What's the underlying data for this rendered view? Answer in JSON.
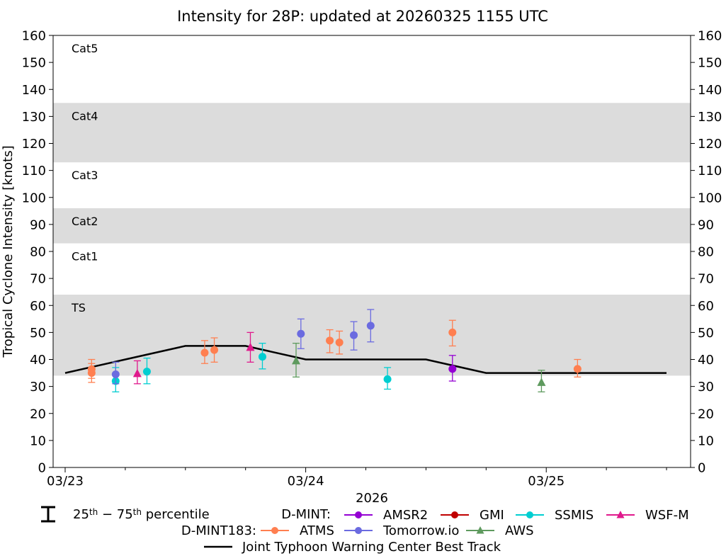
{
  "chart_data": {
    "type": "scatter",
    "title": "Intensity for 28P: updated at 20260325 1155 UTC",
    "xlabel": "2026",
    "ylabel": "Tropical Cyclone Intensity [knots]",
    "ylim": [
      0,
      160
    ],
    "xlim_days": [
      -0.05,
      2.6
    ],
    "yticks": [
      0,
      10,
      20,
      30,
      40,
      50,
      60,
      70,
      80,
      90,
      100,
      110,
      120,
      130,
      140,
      150,
      160
    ],
    "xticks": [
      {
        "day": 0,
        "label": "03/23"
      },
      {
        "day": 1,
        "label": "03/24"
      },
      {
        "day": 2,
        "label": "03/25"
      }
    ],
    "minor_xticks_days": [
      0.25,
      0.5,
      0.75,
      1.25,
      1.5,
      1.75,
      2.25,
      2.5
    ],
    "categories": [
      {
        "name": "TS",
        "min": 34,
        "max": 64,
        "shaded": true
      },
      {
        "name": "Cat1",
        "min": 64,
        "max": 83,
        "shaded": false
      },
      {
        "name": "Cat2",
        "min": 83,
        "max": 96,
        "shaded": true
      },
      {
        "name": "Cat3",
        "min": 96,
        "max": 113,
        "shaded": false
      },
      {
        "name": "Cat4",
        "min": 113,
        "max": 135,
        "shaded": true
      },
      {
        "name": "Cat5",
        "min": 135,
        "max": 160,
        "shaded": false
      }
    ],
    "best_track": {
      "name": "Joint Typhoon Warning Center Best Track",
      "color": "#000000",
      "points": [
        [
          0,
          35
        ],
        [
          0.25,
          40
        ],
        [
          0.5,
          45
        ],
        [
          0.75,
          45
        ],
        [
          1.0,
          40
        ],
        [
          1.25,
          40
        ],
        [
          1.5,
          40
        ],
        [
          1.75,
          35
        ],
        [
          2.0,
          35
        ],
        [
          2.25,
          35
        ],
        [
          2.5,
          35
        ]
      ]
    },
    "series": [
      {
        "name": "AMSR2",
        "group": "D-MINT",
        "color": "#9400D3",
        "marker": "circle",
        "points": [
          {
            "x": 1.61,
            "y": 36.5,
            "lo": 32,
            "hi": 41.5
          }
        ]
      },
      {
        "name": "GMI",
        "group": "D-MINT",
        "color": "#C00000",
        "marker": "circle",
        "points": []
      },
      {
        "name": "SSMIS",
        "group": "D-MINT",
        "color": "#00CED1",
        "marker": "circle",
        "points": [
          {
            "x": 0.21,
            "y": 32,
            "lo": 28,
            "hi": 37
          },
          {
            "x": 0.34,
            "y": 35.5,
            "lo": 31,
            "hi": 40.5
          },
          {
            "x": 0.82,
            "y": 41,
            "lo": 36.5,
            "hi": 46
          },
          {
            "x": 1.34,
            "y": 32.7,
            "lo": 29,
            "hi": 37
          }
        ]
      },
      {
        "name": "WSF-M",
        "group": "D-MINT",
        "color": "#E0198C",
        "marker": "triangle",
        "points": [
          {
            "x": 0.3,
            "y": 34.8,
            "lo": 31,
            "hi": 39.5
          },
          {
            "x": 0.77,
            "y": 44.5,
            "lo": 39,
            "hi": 50
          }
        ]
      },
      {
        "name": "ATMS",
        "group": "D-MINT183",
        "color": "#FF7F50",
        "marker": "circle",
        "points": [
          {
            "x": 0.11,
            "y": 35,
            "lo": 31.5,
            "hi": 38.5
          },
          {
            "x": 0.11,
            "y": 36.4,
            "lo": 33,
            "hi": 40
          },
          {
            "x": 0.58,
            "y": 42.5,
            "lo": 38.5,
            "hi": 47
          },
          {
            "x": 0.62,
            "y": 43.5,
            "lo": 39,
            "hi": 48
          },
          {
            "x": 1.1,
            "y": 47,
            "lo": 42.5,
            "hi": 51
          },
          {
            "x": 1.14,
            "y": 46.3,
            "lo": 42,
            "hi": 50.5
          },
          {
            "x": 1.61,
            "y": 50,
            "lo": 45,
            "hi": 54.5
          },
          {
            "x": 2.13,
            "y": 36.5,
            "lo": 33.5,
            "hi": 40
          }
        ]
      },
      {
        "name": "Tomorrow.io",
        "group": "D-MINT183",
        "color": "#6B6BE0",
        "marker": "circle",
        "points": [
          {
            "x": 0.21,
            "y": 34.5,
            "lo": 31,
            "hi": 39
          },
          {
            "x": 0.98,
            "y": 49.5,
            "lo": 44,
            "hi": 55
          },
          {
            "x": 1.2,
            "y": 49,
            "lo": 43.5,
            "hi": 54
          },
          {
            "x": 1.27,
            "y": 52.5,
            "lo": 46.5,
            "hi": 58.5
          }
        ]
      },
      {
        "name": "AWS",
        "group": "D-MINT183",
        "color": "#5E9A5E",
        "marker": "triangle",
        "points": [
          {
            "x": 0.96,
            "y": 39.5,
            "lo": 33.5,
            "hi": 46
          },
          {
            "x": 1.98,
            "y": 31.5,
            "lo": 28,
            "hi": 36
          }
        ]
      }
    ],
    "legend": {
      "percentile_text": "25th − 75th percentile",
      "percentile_base": "25",
      "percentile_sup": "th",
      "percentile_dash": " − ",
      "percentile_base2": "75",
      "percentile_sup2": "th",
      "percentile_tail": " percentile",
      "dmint_label": "D-MINT:",
      "dmint183_label": "D-MINT183:",
      "best_track_label": "Joint Typhoon Warning Center Best Track",
      "placement": "bottom"
    },
    "colors": {
      "band": "#dcdcdc",
      "axis": "#000000"
    }
  }
}
